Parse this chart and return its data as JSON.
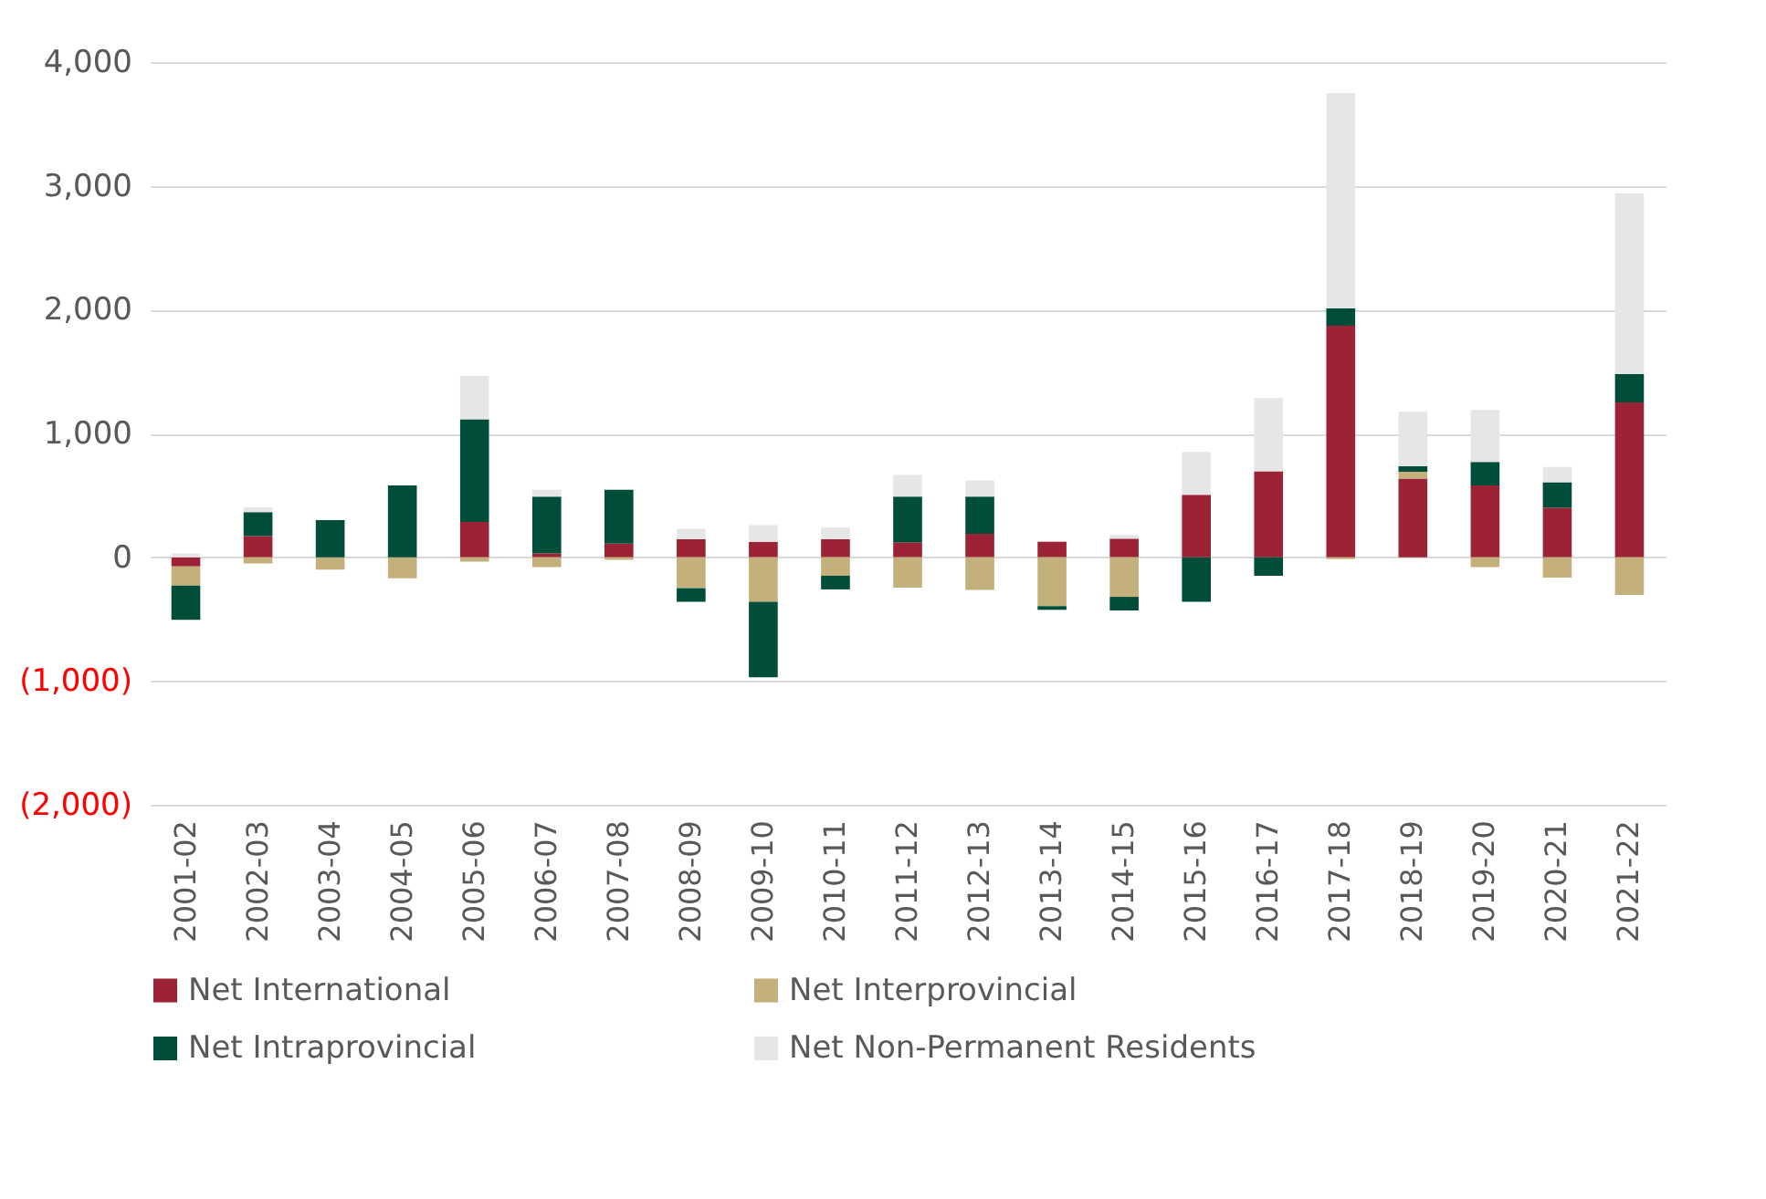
{
  "chart_data": {
    "type": "bar",
    "stacked": true,
    "categories": [
      "2001-02",
      "2002-03",
      "2003-04",
      "2004-05",
      "2005-06",
      "2006-07",
      "2007-08",
      "2008-09",
      "2009-10",
      "2010-11",
      "2011-12",
      "2012-13",
      "2013-14",
      "2014-15",
      "2015-16",
      "2016-17",
      "2017-18",
      "2018-19",
      "2019-20",
      "2020-21",
      "2021-22"
    ],
    "series": [
      {
        "name": "Net International",
        "color": "#9b2335",
        "values": [
          -75,
          170,
          0,
          0,
          285,
          30,
          110,
          145,
          125,
          145,
          120,
          190,
          125,
          150,
          505,
          695,
          1870,
          635,
          580,
          400,
          1250
        ]
      },
      {
        "name": "Net Interprovincial",
        "color": "#c4b07a",
        "values": [
          -155,
          -50,
          -100,
          -170,
          -35,
          -80,
          -20,
          -250,
          -360,
          -150,
          -245,
          -265,
          -395,
          -320,
          0,
          0,
          -15,
          55,
          -80,
          -165,
          -305
        ]
      },
      {
        "name": "Net Intraprovincial",
        "color": "#004d3a",
        "values": [
          -275,
          195,
          300,
          580,
          830,
          460,
          435,
          -110,
          -610,
          -110,
          370,
          300,
          -30,
          -110,
          -360,
          -150,
          140,
          45,
          190,
          205,
          230
        ]
      },
      {
        "name": "Net Non-Permanent Residents",
        "color": "#e6e6e6",
        "values": [
          30,
          40,
          0,
          0,
          350,
          55,
          null,
          85,
          135,
          95,
          175,
          130,
          0,
          30,
          345,
          590,
          1740,
          440,
          420,
          125,
          1460
        ]
      }
    ],
    "ylim": [
      -2000,
      4000
    ],
    "yticks": [
      {
        "value": -2000,
        "label": "(2,000)"
      },
      {
        "value": -1000,
        "label": "(1,000)"
      },
      {
        "value": 0,
        "label": "0"
      },
      {
        "value": 1000,
        "label": "1,000"
      },
      {
        "value": 2000,
        "label": "2,000"
      },
      {
        "value": 3000,
        "label": "3,000"
      },
      {
        "value": 4000,
        "label": "4,000"
      }
    ],
    "grid": "y",
    "legend": "bottom"
  }
}
